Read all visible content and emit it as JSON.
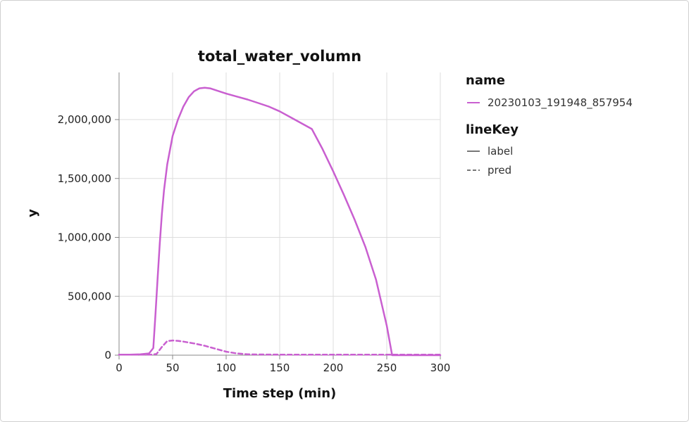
{
  "chart_data": {
    "type": "line",
    "title": "total_water_volumn",
    "xlabel": "Time step (min)",
    "ylabel": "y",
    "xlim": [
      0,
      300
    ],
    "ylim": [
      0,
      2400000
    ],
    "xticks": [
      0,
      50,
      100,
      150,
      200,
      250,
      300
    ],
    "xtick_labels": [
      "0",
      "50",
      "100",
      "150",
      "200",
      "250",
      "300"
    ],
    "yticks": [
      0,
      500000,
      1000000,
      1500000,
      2000000
    ],
    "ytick_labels": [
      "0",
      "500,000",
      "1,000,000",
      "1,500,000",
      "2,000,000"
    ],
    "grid": true,
    "legend_position": "right",
    "legend": {
      "name_title": "name",
      "name_entries": [
        {
          "label": "20230103_191948_857954",
          "color": "#c95fd0"
        }
      ],
      "linekey_title": "lineKey",
      "linekey_entries": [
        {
          "label": "label",
          "dash": "solid"
        },
        {
          "label": "pred",
          "dash": "dashed"
        }
      ]
    },
    "series": [
      {
        "name": "20230103_191948_857954",
        "lineKey": "label",
        "color": "#c95fd0",
        "dash": "solid",
        "x": [
          0,
          10,
          20,
          28,
          32,
          34,
          36,
          38,
          40,
          42,
          45,
          50,
          55,
          60,
          65,
          70,
          75,
          80,
          85,
          90,
          100,
          110,
          120,
          130,
          140,
          150,
          160,
          170,
          180,
          190,
          200,
          210,
          220,
          230,
          240,
          250,
          255,
          260,
          270,
          280,
          290,
          300
        ],
        "y": [
          5000,
          5000,
          8000,
          15000,
          60000,
          350000,
          650000,
          950000,
          1200000,
          1400000,
          1620000,
          1860000,
          2000000,
          2110000,
          2190000,
          2240000,
          2265000,
          2270000,
          2265000,
          2250000,
          2220000,
          2195000,
          2170000,
          2140000,
          2110000,
          2070000,
          2020000,
          1970000,
          1920000,
          1750000,
          1560000,
          1360000,
          1150000,
          920000,
          640000,
          250000,
          0,
          0,
          0,
          0,
          0,
          0
        ]
      },
      {
        "name": "20230103_191948_857954",
        "lineKey": "pred",
        "color": "#c95fd0",
        "dash": "dashed",
        "x": [
          0,
          10,
          20,
          30,
          35,
          40,
          45,
          50,
          55,
          60,
          70,
          80,
          90,
          100,
          110,
          120,
          130,
          150,
          200,
          250,
          300
        ],
        "y": [
          5000,
          5000,
          5000,
          5000,
          10000,
          70000,
          120000,
          125000,
          122000,
          115000,
          100000,
          80000,
          55000,
          30000,
          15000,
          8000,
          6000,
          5000,
          5000,
          5000,
          5000
        ]
      }
    ]
  }
}
